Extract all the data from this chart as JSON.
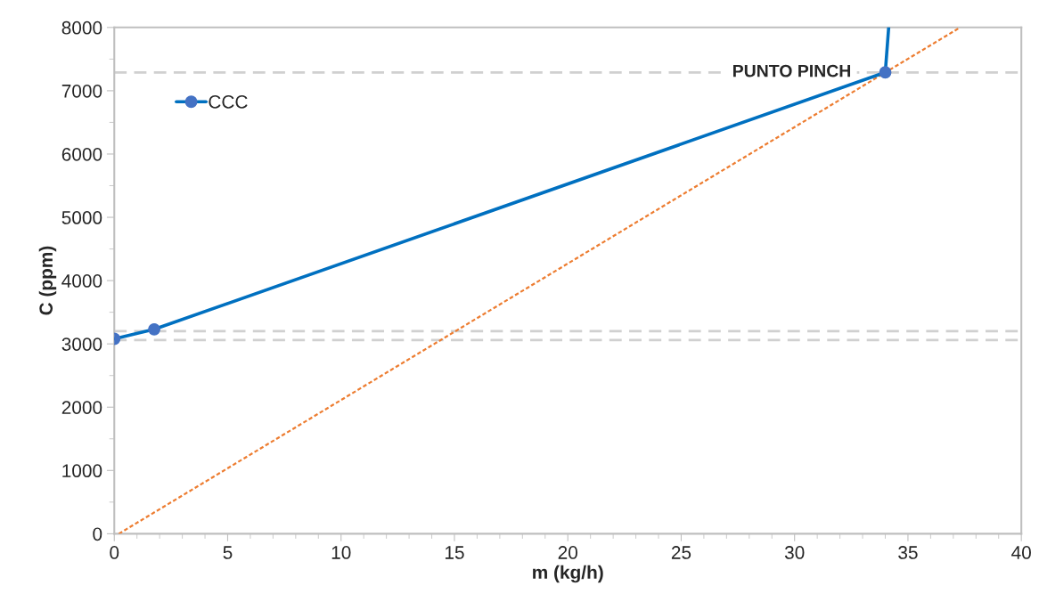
{
  "chart_data": {
    "type": "line",
    "xlabel": "m (kg/h)",
    "ylabel": "C (ppm)",
    "xlim": [
      0,
      40
    ],
    "xticks": [
      0,
      5,
      10,
      15,
      20,
      25,
      30,
      35,
      40
    ],
    "ylim": [
      0,
      8000
    ],
    "yticks": [
      0,
      1000,
      2000,
      3000,
      4000,
      5000,
      6000,
      7000,
      8000
    ],
    "grid": false,
    "legend": "top left",
    "series": [
      {
        "name": "CCC",
        "color": "#0070c0",
        "x": [
          0,
          1.76,
          34
        ],
        "values": [
          3080,
          3230,
          7290
        ],
        "marker": "circle",
        "line_style": "solid"
      },
      {
        "color": "#0070c0",
        "x": [
          34,
          34.15
        ],
        "values": [
          7290,
          8000
        ],
        "marker": "none",
        "line_style": "solid"
      },
      {
        "color": "#ed7d31",
        "x": [
          0.2,
          37.3
        ],
        "values": [
          0,
          8000
        ],
        "marker": "none",
        "line_style": "dotted"
      }
    ],
    "ref_lines": [
      {
        "axis": "y",
        "value": 7290,
        "label": "PUNTO PINCH",
        "color": "#d0d0d0",
        "line_style": "dashed"
      },
      {
        "axis": "y",
        "value": 3200,
        "color": "#d0d0d0",
        "line_style": "dashed"
      },
      {
        "axis": "y",
        "value": 3060,
        "color": "#d0d0d0",
        "line_style": "dashed"
      }
    ]
  }
}
